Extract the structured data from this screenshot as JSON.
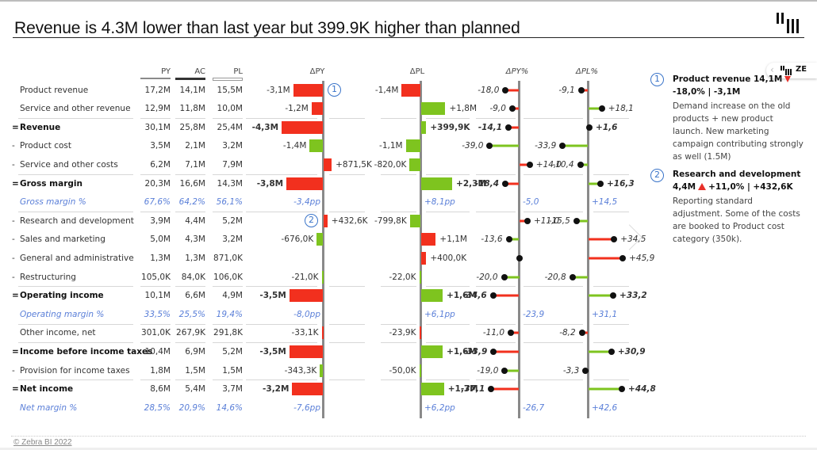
{
  "title": "Revenue is 4.3M lower than last year but 399.9K higher than planned",
  "footer": "© Zebra BI 2022",
  "zebra_pill": {
    "label": "ZE"
  },
  "colors": {
    "negative": "#f2301e",
    "positive": "#7ec41f",
    "axis": "#8a8a8a",
    "percent_text": "#5a7fd8",
    "marker": "#3a74c9"
  },
  "columns": {
    "py": "PY",
    "ac": "AC",
    "pl": "PL",
    "dpy": "ΔPY",
    "dpl": "ΔPL",
    "dpy_pct": "ΔPY%",
    "dpl_pct": "ΔPL%"
  },
  "rows": [
    {
      "prefix": "",
      "label": "Product revenue",
      "type": "normal",
      "py": "17,2M",
      "ac": "14,1M",
      "pl": "15,5M",
      "dpy": {
        "v": -3.1,
        "text": "-3,1M",
        "good": false
      },
      "dpl": {
        "v": -1.4,
        "text": "-1,4M",
        "good": false
      },
      "dpy_pct": {
        "v": -18.0,
        "text": "-18,0",
        "good": false
      },
      "dpl_pct": {
        "v": -9.1,
        "text": "-9,1",
        "good": false
      },
      "marker_dpy": "1"
    },
    {
      "prefix": "",
      "label": "Service and other revenue",
      "type": "normal",
      "py": "12,9M",
      "ac": "11,8M",
      "pl": "10,0M",
      "dpy": {
        "v": -1.2,
        "text": "-1,2M",
        "good": false
      },
      "dpl": {
        "v": 1.8,
        "text": "+1,8M",
        "good": true
      },
      "dpy_pct": {
        "v": -9.0,
        "text": "-9,0",
        "good": false
      },
      "dpl_pct": {
        "v": 18.1,
        "text": "+18,1",
        "good": true
      },
      "sep_after": true
    },
    {
      "prefix": "=",
      "label": "Revenue",
      "type": "total",
      "py": "30,1M",
      "ac": "25,8M",
      "pl": "25,4M",
      "dpy": {
        "v": -4.3,
        "text": "-4,3M",
        "good": false
      },
      "dpl": {
        "v": 0.3999,
        "text": "+399,9K",
        "good": true
      },
      "dpy_pct": {
        "v": -14.1,
        "text": "-14,1",
        "good": false
      },
      "dpl_pct": {
        "v": 1.6,
        "text": "+1,6",
        "good": true
      }
    },
    {
      "prefix": "-",
      "label": "Product cost",
      "type": "normal",
      "py": "3,5M",
      "ac": "2,1M",
      "pl": "3,2M",
      "dpy": {
        "v": -1.4,
        "text": "-1,4M",
        "good": true
      },
      "dpl": {
        "v": -1.1,
        "text": "-1,1M",
        "good": true
      },
      "dpy_pct": {
        "v": -39.0,
        "text": "-39,0",
        "good": true
      },
      "dpl_pct": {
        "v": -33.9,
        "text": "-33,9",
        "good": true
      }
    },
    {
      "prefix": "-",
      "label": "Service and other costs",
      "type": "normal",
      "py": "6,2M",
      "ac": "7,1M",
      "pl": "7,9M",
      "dpy": {
        "v": 0.8715,
        "text": "+871,5K",
        "good": false
      },
      "dpl": {
        "v": -0.82,
        "text": "-820,0K",
        "good": true
      },
      "dpy_pct": {
        "v": 14.0,
        "text": "+14,0",
        "good": false
      },
      "dpl_pct": {
        "v": -10.4,
        "text": "-10,4",
        "good": true
      },
      "sep_after": true
    },
    {
      "prefix": "=",
      "label": "Gross margin",
      "type": "total",
      "py": "20,3M",
      "ac": "16,6M",
      "pl": "14,3M",
      "dpy": {
        "v": -3.8,
        "text": "-3,8M",
        "good": false
      },
      "dpl": {
        "v": 2.3,
        "text": "+2,3M",
        "good": true
      },
      "dpy_pct": {
        "v": -18.4,
        "text": "-18,4",
        "good": false
      },
      "dpl_pct": {
        "v": 16.3,
        "text": "+16,3",
        "good": true
      }
    },
    {
      "prefix": "",
      "label": "Gross margin %",
      "type": "percent",
      "py": "67,6%",
      "ac": "64,2%",
      "pl": "56,1%",
      "dpy_pp": "-3,4pp",
      "dpl_pp": "+8,1pp",
      "dpy_pct_text": "-5,0",
      "dpl_pct_text": "+14,5",
      "sep_after": true
    },
    {
      "prefix": "-",
      "label": "Research and development",
      "type": "normal",
      "py": "3,9M",
      "ac": "4,4M",
      "pl": "5,2M",
      "dpy": {
        "v": 0.4326,
        "text": "+432,6K",
        "good": false
      },
      "dpl": {
        "v": -0.7998,
        "text": "-799,8K",
        "good": true
      },
      "dpy_pct": {
        "v": 11.0,
        "text": "+11,0",
        "good": false
      },
      "dpl_pct": {
        "v": -15.5,
        "text": "-15,5",
        "good": true
      },
      "marker_dpy": "2"
    },
    {
      "prefix": "-",
      "label": "Sales and marketing",
      "type": "normal",
      "py": "5,0M",
      "ac": "4,3M",
      "pl": "3,2M",
      "dpy": {
        "v": -0.676,
        "text": "-676,0K",
        "good": true
      },
      "dpl": {
        "v": 1.1,
        "text": "+1,1M",
        "good": false
      },
      "dpy_pct": {
        "v": -13.6,
        "text": "-13,6",
        "good": true
      },
      "dpl_pct": {
        "v": 34.5,
        "text": "+34,5",
        "good": false
      }
    },
    {
      "prefix": "-",
      "label": "General and administrative",
      "type": "normal",
      "py": "1,3M",
      "ac": "1,3M",
      "pl": "871,0K",
      "dpy": {
        "v": 0,
        "text": "",
        "good": true
      },
      "dpl": {
        "v": 0.4,
        "text": "+400,0K",
        "good": false
      },
      "dpy_pct": {
        "v": 0,
        "text": "",
        "good": true
      },
      "dpl_pct": {
        "v": 45.9,
        "text": "+45,9",
        "good": false
      }
    },
    {
      "prefix": "-",
      "label": "Restructuring",
      "type": "normal",
      "py": "105,0K",
      "ac": "84,0K",
      "pl": "106,0K",
      "dpy": {
        "v": -0.021,
        "text": "-21,0K",
        "good": true
      },
      "dpl": {
        "v": -0.022,
        "text": "-22,0K",
        "good": true
      },
      "dpy_pct": {
        "v": -20.0,
        "text": "-20,0",
        "good": true
      },
      "dpl_pct": {
        "v": -20.8,
        "text": "-20,8",
        "good": true
      },
      "sep_after": true
    },
    {
      "prefix": "=",
      "label": "Operating income",
      "type": "total",
      "py": "10,1M",
      "ac": "6,6M",
      "pl": "4,9M",
      "dpy": {
        "v": -3.5,
        "text": "-3,5M",
        "good": false
      },
      "dpl": {
        "v": 1.6,
        "text": "+1,6M",
        "good": true
      },
      "dpy_pct": {
        "v": -34.6,
        "text": "-34,6",
        "good": false
      },
      "dpl_pct": {
        "v": 33.2,
        "text": "+33,2",
        "good": true
      }
    },
    {
      "prefix": "",
      "label": "Operating margin %",
      "type": "percent",
      "py": "33,5%",
      "ac": "25,5%",
      "pl": "19,4%",
      "dpy_pp": "-8,0pp",
      "dpl_pp": "+6,1pp",
      "dpy_pct_text": "-23,9",
      "dpl_pct_text": "+31,1",
      "sep_after": true
    },
    {
      "prefix": "",
      "label": "Other income, net",
      "type": "normal",
      "py": "301,0K",
      "ac": "267,9K",
      "pl": "291,8K",
      "dpy": {
        "v": -0.0331,
        "text": "-33,1K",
        "good": false
      },
      "dpl": {
        "v": -0.0239,
        "text": "-23,9K",
        "good": false
      },
      "dpy_pct": {
        "v": -11.0,
        "text": "-11,0",
        "good": false
      },
      "dpl_pct": {
        "v": -8.2,
        "text": "-8,2",
        "good": false
      },
      "sep_after": true
    },
    {
      "prefix": "=",
      "label": "Income before income taxes",
      "type": "total",
      "py": "10,4M",
      "ac": "6,9M",
      "pl": "5,2M",
      "dpy": {
        "v": -3.5,
        "text": "-3,5M",
        "good": false
      },
      "dpl": {
        "v": 1.6,
        "text": "+1,6M",
        "good": true
      },
      "dpy_pct": {
        "v": -33.9,
        "text": "-33,9",
        "good": false
      },
      "dpl_pct": {
        "v": 30.9,
        "text": "+30,9",
        "good": true
      }
    },
    {
      "prefix": "-",
      "label": "Provision for income taxes",
      "type": "normal",
      "py": "1,8M",
      "ac": "1,5M",
      "pl": "1,5M",
      "dpy": {
        "v": -0.3433,
        "text": "-343,3K",
        "good": true
      },
      "dpl": {
        "v": -0.05,
        "text": "-50,0K",
        "good": true
      },
      "dpy_pct": {
        "v": -19.0,
        "text": "-19,0",
        "good": true
      },
      "dpl_pct": {
        "v": -3.3,
        "text": "-3,3",
        "good": true
      },
      "sep_after": true
    },
    {
      "prefix": "=",
      "label": "Net income",
      "type": "total",
      "py": "8,6M",
      "ac": "5,4M",
      "pl": "3,7M",
      "dpy": {
        "v": -3.2,
        "text": "-3,2M",
        "good": false
      },
      "dpl": {
        "v": 1.7,
        "text": "+1,7M",
        "good": true
      },
      "dpy_pct": {
        "v": -37.1,
        "text": "-37,1",
        "good": false
      },
      "dpl_pct": {
        "v": 44.8,
        "text": "+44,8",
        "good": true
      }
    },
    {
      "prefix": "",
      "label": "Net margin %",
      "type": "percent",
      "py": "28,5%",
      "ac": "20,9%",
      "pl": "14,6%",
      "dpy_pp": "-7,6pp",
      "dpl_pp": "+6,2pp",
      "dpy_pct_text": "-26,7",
      "dpl_pct_text": "+42,6"
    }
  ],
  "comments": [
    {
      "number": "1",
      "title": "Product revenue 14,1M",
      "trend": "down",
      "subtitle": "-18,0% | -3,1M",
      "text": "Demand increase on the old products + new product launch. New marketing campaign contributing strongly as well (1.5M)"
    },
    {
      "number": "2",
      "title": "Research and development",
      "subtitle_value": "4,4M",
      "trend": "up",
      "subtitle": "+11,0% | +432,6K",
      "text": "Reporting standard adjustment. Some of the costs are booked to Product cost category (350k)."
    }
  ]
}
